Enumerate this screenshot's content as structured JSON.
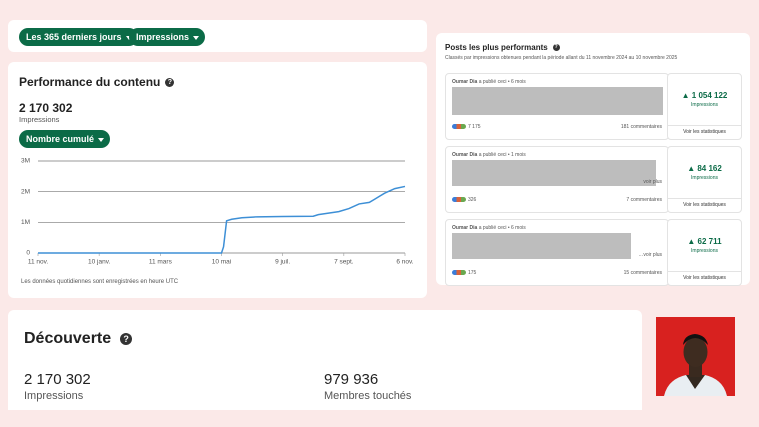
{
  "filters": [
    "Les 365 derniers jours",
    "Impressions"
  ],
  "performance": {
    "title": "Performance du contenu",
    "total": "2 170 302",
    "total_label": "Impressions",
    "mode": "Nombre cumulé",
    "footnote": "Les données quotidiennes sont enregistrées en heure UTC",
    "chart": {
      "type": "line",
      "color": "#3d8fd6",
      "grid": true,
      "x": [
        0,
        180,
        182,
        185,
        190,
        200,
        215,
        240,
        270,
        275,
        285,
        295,
        305,
        315,
        325,
        330,
        340,
        350,
        360
      ],
      "values": [
        0,
        0,
        200000,
        1050000,
        1100000,
        1150000,
        1180000,
        1190000,
        1200000,
        1250000,
        1300000,
        1350000,
        1450000,
        1600000,
        1650000,
        1750000,
        1950000,
        2100000,
        2170302
      ],
      "xlim": [
        0,
        360
      ],
      "xticks": [
        {
          "value": 0,
          "label": "11 nov."
        },
        {
          "value": 60,
          "label": "10 janv."
        },
        {
          "value": 120,
          "label": "11 mars"
        },
        {
          "value": 180,
          "label": "10 mai"
        },
        {
          "value": 240,
          "label": "9 juil."
        },
        {
          "value": 300,
          "label": "7 sept."
        },
        {
          "value": 360,
          "label": "6 nov."
        }
      ],
      "ylim": [
        0,
        3000000
      ],
      "yticks": [
        0,
        {
          "value": 1000000,
          "label": "1M"
        },
        {
          "value": 2000000,
          "label": "2M"
        },
        {
          "value": 3000000,
          "label": "3M"
        }
      ]
    }
  },
  "top_posts": {
    "title": "Posts les plus performants",
    "subtitle": "Classés par impressions obtenues pendant la période allant du 11 novembre 2024 au 10 novembre 2025",
    "posts": [
      {
        "author": "Oumar Dia",
        "meta": "a publié ceci • 6 mois",
        "reactions": "7 175",
        "comments": "181 commentaires",
        "impressions": "1 054 122",
        "impressions_label": "Impressions",
        "stats_link": "Voir les statistiques"
      },
      {
        "author": "Oumar Dia",
        "meta": "a publié ceci • 1 mois",
        "more": "voir plus",
        "reactions": "326",
        "comments": "7 commentaires",
        "impressions": "84 162",
        "impressions_label": "Impressions",
        "stats_link": "Voir les statistiques"
      },
      {
        "author": "Oumar Dia",
        "meta": "a publié ceci • 6 mois",
        "more": "…voir plus",
        "reactions": "175",
        "comments": "15 commentaires",
        "impressions": "62 711",
        "impressions_label": "Impressions",
        "stats_link": "Voir les statistiques"
      }
    ]
  },
  "discovery": {
    "title": "Découverte",
    "stats": [
      {
        "value": "2 170 302",
        "label": "Impressions"
      },
      {
        "value": "979 936",
        "label": "Membres touchés"
      }
    ]
  }
}
